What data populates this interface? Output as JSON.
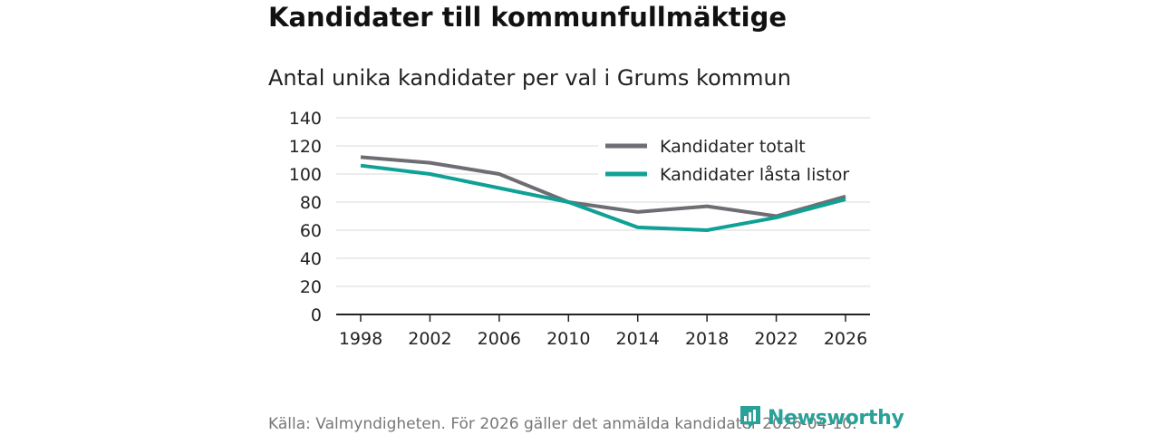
{
  "header": {
    "title": "Kandidater till kommunfullmäktige",
    "subtitle": "Antal unika kandidater per val i Grums kommun"
  },
  "footer": {
    "source": "Källa: Valmyndigheten. För 2026 gäller det anmälda kandidater 2026-04-10.",
    "brand": "Newsworthy"
  },
  "colors": {
    "series_total": "#6e6d73",
    "series_locked": "#0fa195",
    "brand": "#2aa198"
  },
  "chart_data": {
    "type": "line",
    "title": "Antal unika kandidater per val i Grums kommun",
    "xlabel": "",
    "ylabel": "",
    "categories": [
      "1998",
      "2002",
      "2006",
      "2010",
      "2014",
      "2018",
      "2022",
      "2026"
    ],
    "yticks": [
      "0",
      "20",
      "40",
      "60",
      "80",
      "100",
      "120",
      "140"
    ],
    "ylim": [
      0,
      140
    ],
    "grid": true,
    "legend_position": "top-right",
    "series": [
      {
        "name": "Kandidater totalt",
        "values": [
          112,
          108,
          100,
          80,
          73,
          77,
          70,
          84
        ]
      },
      {
        "name": "Kandidater låsta listor",
        "values": [
          106,
          100,
          90,
          80,
          62,
          60,
          69,
          82
        ]
      }
    ]
  }
}
